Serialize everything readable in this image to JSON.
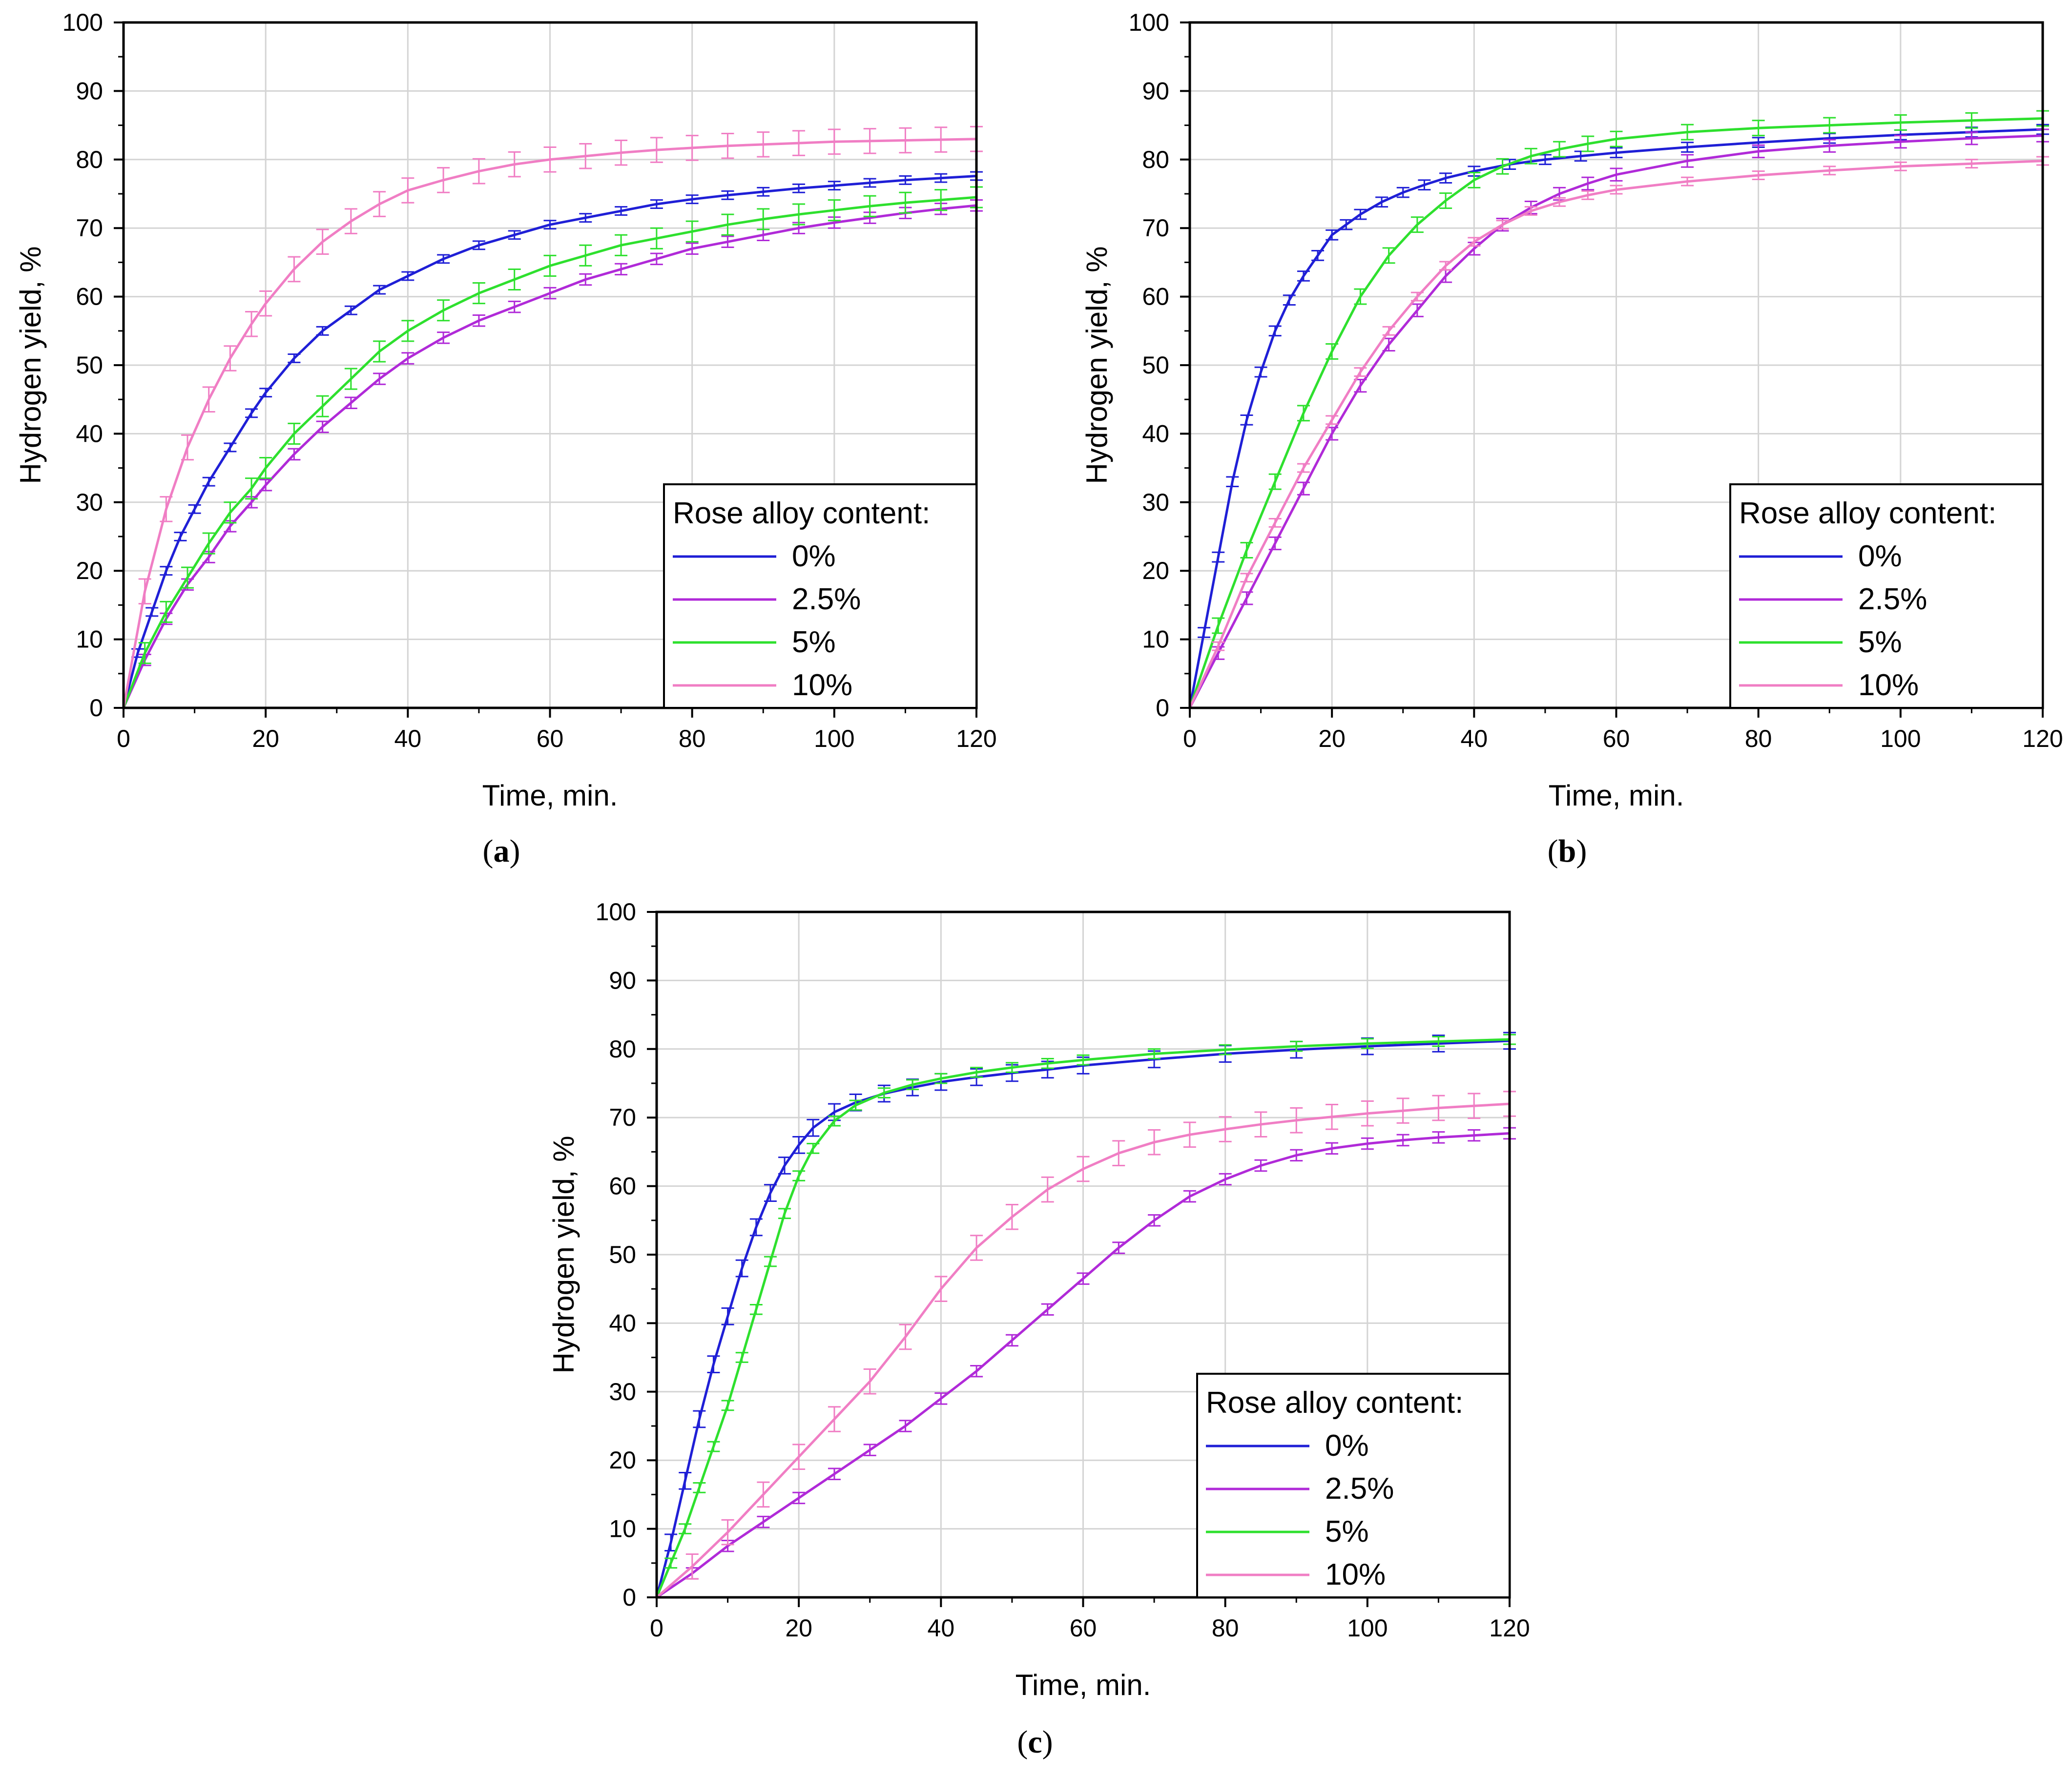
{
  "chart_data": [
    {
      "panel": "a",
      "caption_letter": "a",
      "type": "line",
      "title": "",
      "xlabel": "Time, min.",
      "ylabel": "Hydrogen yield, %",
      "xlim": [
        0,
        120
      ],
      "ylim": [
        0,
        100
      ],
      "xticks": [
        0,
        20,
        40,
        60,
        80,
        100,
        120
      ],
      "yticks": [
        0,
        10,
        20,
        30,
        40,
        50,
        60,
        70,
        80,
        90,
        100
      ],
      "grid": true,
      "legend": {
        "title": "Rose alloy content:",
        "position": "bottom-right"
      },
      "series": [
        {
          "name": "0%",
          "color": "#1f1fd6",
          "x": [
            0,
            2,
            4,
            6,
            8,
            10,
            12,
            15,
            18,
            20,
            24,
            28,
            32,
            36,
            40,
            45,
            50,
            55,
            60,
            65,
            70,
            75,
            80,
            85,
            90,
            95,
            100,
            105,
            110,
            115,
            120
          ],
          "y": [
            0,
            8,
            14,
            20,
            25,
            29,
            33,
            38,
            43,
            46,
            51,
            55,
            58,
            61,
            63,
            65.5,
            67.5,
            69,
            70.5,
            71.5,
            72.5,
            73.5,
            74.2,
            74.8,
            75.3,
            75.8,
            76.2,
            76.6,
            77,
            77.3,
            77.6
          ],
          "error": 0.6
        },
        {
          "name": "2.5%",
          "color": "#b02ad8",
          "x": [
            0,
            3,
            6,
            9,
            12,
            15,
            18,
            20,
            24,
            28,
            32,
            36,
            40,
            45,
            50,
            55,
            60,
            65,
            70,
            75,
            80,
            85,
            90,
            95,
            100,
            105,
            110,
            115,
            120
          ],
          "y": [
            0,
            7,
            13,
            18,
            22,
            26.5,
            30,
            32.5,
            37,
            41,
            44.5,
            48,
            51,
            54,
            56.5,
            58.5,
            60.5,
            62.5,
            64,
            65.5,
            67,
            68,
            69,
            70,
            70.8,
            71.5,
            72.2,
            72.8,
            73.3
          ],
          "error": 0.8
        },
        {
          "name": "5%",
          "color": "#2ee02e",
          "x": [
            0,
            3,
            6,
            9,
            12,
            15,
            18,
            20,
            24,
            28,
            32,
            36,
            40,
            45,
            50,
            55,
            60,
            65,
            70,
            75,
            80,
            85,
            90,
            95,
            100,
            105,
            110,
            115,
            120
          ],
          "y": [
            0,
            8,
            14,
            19,
            24,
            28.5,
            32,
            35,
            40,
            44,
            48,
            52,
            55,
            58,
            60.5,
            62.5,
            64.5,
            66,
            67.5,
            68.5,
            69.5,
            70.5,
            71.3,
            72,
            72.6,
            73.2,
            73.7,
            74.1,
            74.5
          ],
          "error": 1.5
        },
        {
          "name": "10%",
          "color": "#f07ec4",
          "x": [
            0,
            3,
            6,
            9,
            12,
            15,
            18,
            20,
            24,
            28,
            32,
            36,
            40,
            45,
            50,
            55,
            60,
            65,
            70,
            75,
            80,
            85,
            90,
            95,
            100,
            105,
            110,
            115,
            120
          ],
          "y": [
            0,
            17,
            29,
            38,
            45,
            51,
            56,
            59,
            64,
            68,
            71,
            73.5,
            75.5,
            77,
            78.3,
            79.3,
            80,
            80.5,
            81,
            81.4,
            81.7,
            82,
            82.2,
            82.4,
            82.6,
            82.7,
            82.8,
            82.9,
            83
          ],
          "error": 1.8
        }
      ]
    },
    {
      "panel": "b",
      "caption_letter": "b",
      "type": "line",
      "title": "",
      "xlabel": "Time, min.",
      "ylabel": "Hydrogen yield, %",
      "xlim": [
        0,
        120
      ],
      "ylim": [
        0,
        100
      ],
      "xticks": [
        0,
        20,
        40,
        60,
        80,
        100,
        120
      ],
      "yticks": [
        0,
        10,
        20,
        30,
        40,
        50,
        60,
        70,
        80,
        90,
        100
      ],
      "grid": true,
      "legend": {
        "title": "Rose alloy content:",
        "position": "bottom-right"
      },
      "series": [
        {
          "name": "0%",
          "color": "#1f1fd6",
          "x": [
            0,
            2,
            4,
            6,
            8,
            10,
            12,
            14,
            16,
            18,
            20,
            22,
            24,
            27,
            30,
            33,
            36,
            40,
            45,
            50,
            55,
            60,
            70,
            80,
            90,
            100,
            110,
            120
          ],
          "y": [
            0,
            11,
            22,
            33,
            42,
            49,
            55,
            59.5,
            63,
            66,
            69,
            70.5,
            72,
            73.8,
            75.2,
            76.3,
            77.3,
            78.3,
            79.3,
            80,
            80.5,
            81,
            81.8,
            82.5,
            83.1,
            83.6,
            84,
            84.4
          ],
          "error": 0.7
        },
        {
          "name": "2.5%",
          "color": "#b02ad8",
          "x": [
            0,
            4,
            8,
            12,
            16,
            20,
            24,
            28,
            32,
            36,
            40,
            44,
            48,
            52,
            56,
            60,
            70,
            80,
            90,
            100,
            110,
            120
          ],
          "y": [
            0,
            8,
            16,
            24,
            32,
            40,
            47,
            53,
            58,
            63,
            67,
            70.5,
            73,
            75,
            76.5,
            77.8,
            79.8,
            81.2,
            82,
            82.6,
            83.1,
            83.5
          ],
          "error": 0.9
        },
        {
          "name": "5%",
          "color": "#2ee02e",
          "x": [
            0,
            4,
            8,
            12,
            16,
            20,
            24,
            28,
            32,
            36,
            40,
            44,
            48,
            52,
            56,
            60,
            70,
            80,
            90,
            100,
            110,
            120
          ],
          "y": [
            0,
            12,
            23,
            33,
            43,
            52,
            60,
            66,
            70.5,
            74,
            77,
            79,
            80.5,
            81.5,
            82.3,
            83,
            84,
            84.6,
            85,
            85.4,
            85.7,
            86
          ],
          "error": 1.1
        },
        {
          "name": "10%",
          "color": "#f07ec4",
          "x": [
            0,
            4,
            8,
            12,
            16,
            20,
            24,
            28,
            32,
            36,
            40,
            44,
            48,
            52,
            56,
            60,
            70,
            80,
            90,
            100,
            110,
            120
          ],
          "y": [
            0,
            9,
            19,
            27,
            35,
            42,
            49,
            55,
            60,
            64.5,
            68,
            70.5,
            72.5,
            73.8,
            74.8,
            75.6,
            76.8,
            77.7,
            78.4,
            79,
            79.4,
            79.8
          ],
          "error": 0.6
        }
      ]
    },
    {
      "panel": "c",
      "caption_letter": "c",
      "type": "line",
      "title": "",
      "xlabel": "Time, min.",
      "ylabel": "Hydrogen yield, %",
      "xlim": [
        0,
        120
      ],
      "ylim": [
        0,
        100
      ],
      "xticks": [
        0,
        20,
        40,
        60,
        80,
        100,
        120
      ],
      "yticks": [
        0,
        10,
        20,
        30,
        40,
        50,
        60,
        70,
        80,
        90,
        100
      ],
      "grid": true,
      "legend": {
        "title": "Rose alloy content:",
        "position": "bottom-right"
      },
      "series": [
        {
          "name": "0%",
          "color": "#1f1fd6",
          "x": [
            0,
            2,
            4,
            6,
            8,
            10,
            12,
            14,
            16,
            18,
            20,
            22,
            25,
            28,
            32,
            36,
            40,
            45,
            50,
            55,
            60,
            70,
            80,
            90,
            100,
            110,
            120
          ],
          "y": [
            0,
            8,
            17,
            26,
            34,
            41,
            48,
            54,
            59,
            63,
            66,
            68.5,
            70.8,
            72.2,
            73.5,
            74.4,
            75.2,
            75.9,
            76.5,
            77,
            77.6,
            78.5,
            79.3,
            79.9,
            80.4,
            80.8,
            81.2
          ],
          "error": 1.2
        },
        {
          "name": "2.5%",
          "color": "#b02ad8",
          "x": [
            0,
            5,
            10,
            15,
            20,
            25,
            30,
            35,
            40,
            45,
            50,
            55,
            60,
            65,
            70,
            75,
            80,
            85,
            90,
            95,
            100,
            105,
            110,
            115,
            120
          ],
          "y": [
            0,
            3.5,
            7.5,
            11,
            14.5,
            18,
            21.5,
            25,
            29,
            33,
            37.5,
            42,
            46.5,
            51,
            55,
            58.5,
            61,
            63,
            64.5,
            65.5,
            66.2,
            66.7,
            67.1,
            67.4,
            67.7
          ],
          "error": 0.8
        },
        {
          "name": "5%",
          "color": "#2ee02e",
          "x": [
            0,
            2,
            4,
            6,
            8,
            10,
            12,
            14,
            16,
            18,
            20,
            22,
            25,
            28,
            32,
            36,
            40,
            45,
            50,
            55,
            60,
            70,
            80,
            90,
            100,
            110,
            120
          ],
          "y": [
            0,
            5,
            10,
            16,
            22,
            28,
            35,
            42,
            49,
            56,
            61.5,
            65.5,
            69.5,
            71.8,
            73.6,
            74.8,
            75.7,
            76.6,
            77.3,
            77.9,
            78.4,
            79.3,
            79.9,
            80.4,
            80.8,
            81.1,
            81.4
          ],
          "error": 0.7
        },
        {
          "name": "10%",
          "color": "#f07ec4",
          "x": [
            0,
            5,
            10,
            15,
            20,
            25,
            30,
            35,
            40,
            45,
            50,
            55,
            60,
            65,
            70,
            75,
            80,
            85,
            90,
            95,
            100,
            105,
            110,
            115,
            120
          ],
          "y": [
            0,
            4.5,
            9.5,
            15,
            20.5,
            26,
            31.5,
            38,
            45,
            51,
            55.5,
            59.5,
            62.5,
            64.8,
            66.4,
            67.5,
            68.3,
            69,
            69.6,
            70.1,
            70.6,
            71,
            71.4,
            71.7,
            72
          ],
          "error": 1.8
        }
      ]
    }
  ]
}
